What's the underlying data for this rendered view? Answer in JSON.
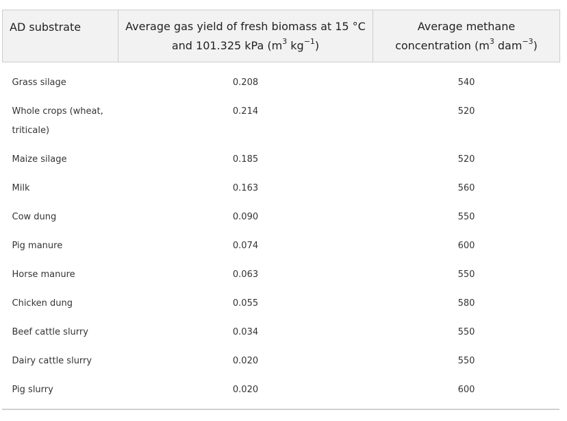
{
  "header": {
    "col1": "AD substrate",
    "col2_line1": "Average gas yield of fresh biomass at 15 °C",
    "col2_line2_a": "and 101.325 kPa (m",
    "col2_sup1": "3",
    "col2_line2_b": " kg",
    "col2_sup2": "−1",
    "col2_line2_c": ")",
    "col3_line1": "Average methane",
    "col3_line2_a": "concentration (m",
    "col3_sup1": "3",
    "col3_line2_b": " dam",
    "col3_sup2": "−3",
    "col3_line2_c": ")"
  },
  "rows": [
    {
      "substrate": "Grass silage",
      "yield": "0.208",
      "methane": "540"
    },
    {
      "substrate": "Whole crops (wheat, triticale)",
      "yield": "0.214",
      "methane": "520"
    },
    {
      "substrate": "Maize silage",
      "yield": "0.185",
      "methane": "520"
    },
    {
      "substrate": "Milk",
      "yield": "0.163",
      "methane": "560"
    },
    {
      "substrate": "Cow dung",
      "yield": "0.090",
      "methane": "550"
    },
    {
      "substrate": "Pig manure",
      "yield": "0.074",
      "methane": "600"
    },
    {
      "substrate": "Horse manure",
      "yield": "0.063",
      "methane": "550"
    },
    {
      "substrate": "Chicken dung",
      "yield": "0.055",
      "methane": "580"
    },
    {
      "substrate": "Beef cattle slurry",
      "yield": "0.034",
      "methane": "550"
    },
    {
      "substrate": "Dairy cattle slurry",
      "yield": "0.020",
      "methane": "550"
    },
    {
      "substrate": "Pig slurry",
      "yield": "0.020",
      "methane": "600"
    }
  ]
}
